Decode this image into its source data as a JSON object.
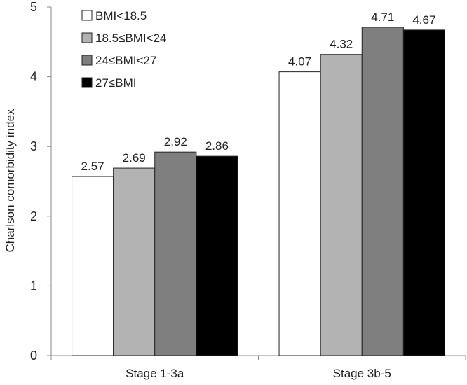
{
  "chart_data": {
    "type": "bar",
    "title": "",
    "xlabel": "",
    "ylabel": "Charlson comorbidity index",
    "ylim": [
      0,
      5
    ],
    "yticks": [
      0,
      1,
      2,
      3,
      4,
      5
    ],
    "grid": false,
    "legend_position": "top-left",
    "categories": [
      "Stage 1-3a",
      "Stage 3b-5"
    ],
    "series": [
      {
        "name": "BMI<18.5",
        "color": "#ffffff",
        "values": [
          2.57,
          4.07
        ],
        "labels": [
          "2.57",
          "4.07"
        ]
      },
      {
        "name": "18.5≤BMI<24",
        "color": "#b3b3b3",
        "values": [
          2.69,
          4.32
        ],
        "labels": [
          "2.69",
          "4.32"
        ]
      },
      {
        "name": "24≤BMI<27",
        "color": "#7f7f7f",
        "values": [
          2.92,
          4.71
        ],
        "labels": [
          "2.92",
          "4.71"
        ]
      },
      {
        "name": "27≤BMI",
        "color": "#000000",
        "values": [
          2.86,
          4.67
        ],
        "labels": [
          "2.86",
          "4.67"
        ]
      }
    ]
  }
}
